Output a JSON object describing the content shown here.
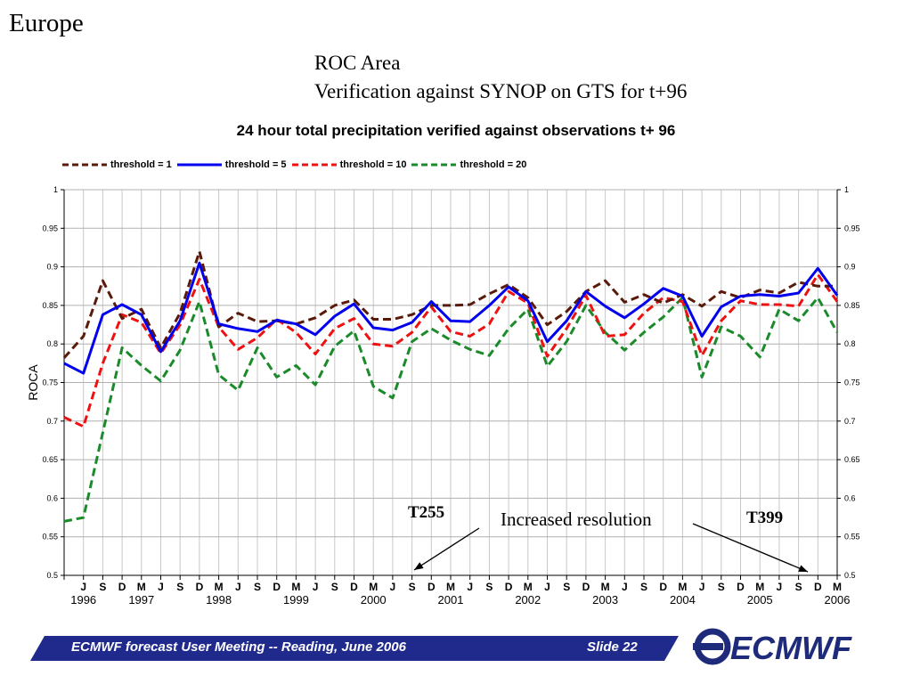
{
  "slide": {
    "title": "Europe",
    "subtitle_lines": [
      "ROC Area",
      "Verification against SYNOP on GTS for t+96"
    ],
    "footer_text": "ECMWF forecast User Meeting -- Reading, June 2006",
    "slide_number": "Slide 22",
    "logo_text": "ECMWF"
  },
  "colors": {
    "footer_bar": "#1f2a8c",
    "logo": "#1e2a7a",
    "threshold_1": "#5a1a0a",
    "threshold_5": "#0000ee",
    "threshold_10": "#ee1111",
    "threshold_20": "#1a8a2a"
  },
  "chart_data": {
    "type": "line",
    "title": "24 hour total precipitation  verified against observations   t+ 96",
    "ylabel": "ROCA",
    "xlabel": "",
    "ylim": [
      0.5,
      1
    ],
    "yticks": [
      "0.5",
      "0.55",
      "0.6",
      "0.65",
      "0.7",
      "0.75",
      "0.8",
      "0.85",
      "0.9",
      "0.95",
      "1"
    ],
    "secondary_y_axis": true,
    "grid": true,
    "legend": "top",
    "categories": [
      "",
      "J",
      "S",
      "D",
      "M",
      "J",
      "S",
      "D",
      "M",
      "J",
      "S",
      "D",
      "M",
      "J",
      "S",
      "D",
      "M",
      "J",
      "S",
      "D",
      "M",
      "J",
      "S",
      "D",
      "M",
      "J",
      "S",
      "D",
      "M",
      "J",
      "S",
      "D",
      "M",
      "J",
      "S",
      "D",
      "M",
      "J",
      "S",
      "D",
      "M"
    ],
    "year_labels": [
      {
        "label": "1996",
        "at": 1
      },
      {
        "label": "1997",
        "at": 4
      },
      {
        "label": "1998",
        "at": 8
      },
      {
        "label": "1999",
        "at": 12
      },
      {
        "label": "2000",
        "at": 16
      },
      {
        "label": "2001",
        "at": 20
      },
      {
        "label": "2002",
        "at": 24
      },
      {
        "label": "2003",
        "at": 28
      },
      {
        "label": "2004",
        "at": 32
      },
      {
        "label": "2005",
        "at": 36
      },
      {
        "label": "2006",
        "at": 40
      }
    ],
    "series": [
      {
        "name": "threshold =  1",
        "style": "dashed",
        "color_key": "threshold_1",
        "values": [
          0.782,
          0.81,
          0.882,
          0.833,
          0.845,
          0.795,
          0.84,
          0.92,
          0.822,
          0.84,
          0.829,
          0.83,
          0.826,
          0.834,
          0.85,
          0.857,
          0.832,
          0.832,
          0.838,
          0.85,
          0.85,
          0.851,
          0.865,
          0.877,
          0.86,
          0.825,
          0.842,
          0.868,
          0.882,
          0.854,
          0.864,
          0.853,
          0.864,
          0.849,
          0.868,
          0.86,
          0.87,
          0.866,
          0.88,
          0.875,
          0.875
        ]
      },
      {
        "name": "threshold =  5",
        "style": "solid",
        "color_key": "threshold_5",
        "values": [
          0.775,
          0.762,
          0.838,
          0.851,
          0.838,
          0.79,
          0.83,
          0.905,
          0.826,
          0.82,
          0.816,
          0.831,
          0.826,
          0.812,
          0.836,
          0.852,
          0.821,
          0.818,
          0.828,
          0.855,
          0.83,
          0.829,
          0.85,
          0.874,
          0.856,
          0.803,
          0.83,
          0.868,
          0.849,
          0.834,
          0.852,
          0.872,
          0.862,
          0.81,
          0.848,
          0.862,
          0.864,
          0.862,
          0.866,
          0.898,
          0.863
        ]
      },
      {
        "name": "threshold = 10",
        "style": "dashed",
        "color_key": "threshold_10",
        "values": [
          0.705,
          0.693,
          0.775,
          0.838,
          0.828,
          0.788,
          0.825,
          0.884,
          0.822,
          0.793,
          0.808,
          0.832,
          0.815,
          0.787,
          0.82,
          0.833,
          0.8,
          0.797,
          0.815,
          0.848,
          0.816,
          0.81,
          0.826,
          0.868,
          0.853,
          0.784,
          0.82,
          0.863,
          0.81,
          0.812,
          0.84,
          0.86,
          0.855,
          0.785,
          0.83,
          0.856,
          0.851,
          0.851,
          0.849,
          0.89,
          0.855
        ]
      },
      {
        "name": "threshold = 20",
        "style": "dashed",
        "color_key": "threshold_20",
        "values": [
          0.57,
          0.575,
          0.685,
          0.795,
          0.772,
          0.752,
          0.792,
          0.855,
          0.76,
          0.74,
          0.795,
          0.757,
          0.772,
          0.747,
          0.797,
          0.817,
          0.745,
          0.73,
          0.803,
          0.82,
          0.805,
          0.793,
          0.785,
          0.82,
          0.845,
          0.771,
          0.803,
          0.85,
          0.815,
          0.792,
          0.815,
          0.835,
          0.86,
          0.757,
          0.822,
          0.81,
          0.783,
          0.845,
          0.83,
          0.86,
          0.815
        ]
      }
    ],
    "annotations": [
      {
        "text": "T255",
        "bold": true
      },
      {
        "text": "Increased resolution",
        "bold": false
      },
      {
        "text": "T399",
        "bold": true
      }
    ]
  }
}
